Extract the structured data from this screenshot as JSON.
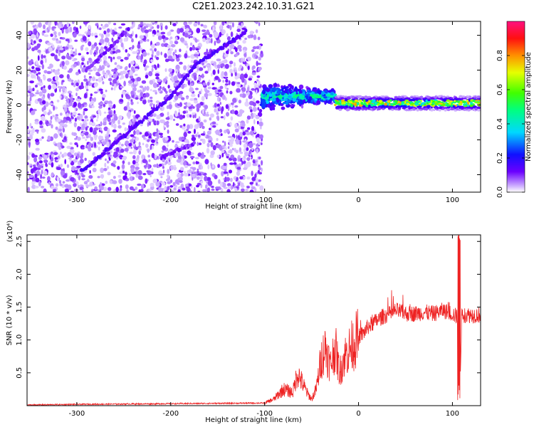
{
  "title": "C2E1.2023.242.10.31.G21",
  "chart_data": [
    {
      "type": "heatmap",
      "xlabel": "Height of straight line (km)",
      "ylabel": "Frequency (Hz)",
      "xlim": [
        -353,
        130
      ],
      "ylim": [
        -50,
        48
      ],
      "x_ticks": [
        -300,
        -200,
        -100,
        0,
        100
      ],
      "x_tick_labels": [
        "-300",
        "-200",
        "-100",
        "0",
        "100"
      ],
      "y_ticks": [
        -40,
        -20,
        0,
        20,
        40
      ],
      "y_tick_labels": [
        "-40",
        "-20",
        "0",
        "20",
        "40"
      ],
      "colorbar": {
        "label": "Normalized spectral amplitude",
        "range": [
          0,
          1
        ],
        "ticks": [
          0.0,
          0.2,
          0.4,
          0.6,
          0.8
        ],
        "tick_labels": [
          "0.0",
          "0.2",
          "0.4",
          "0.6",
          "0.8"
        ],
        "colormap": "rainbow (white-purple-blue-cyan-green-yellow-red-pink)"
      },
      "features": [
        {
          "name": "noise floor",
          "x_range": [
            -353,
            -103
          ],
          "y_range": [
            -50,
            48
          ],
          "amplitude": [
            0.0,
            0.1
          ]
        },
        {
          "name": "diagonal track",
          "points": [
            [
              -295,
              -38
            ],
            [
              -250,
              -18
            ],
            [
              -200,
              5
            ],
            [
              -175,
              22
            ],
            [
              -160,
              28
            ],
            [
              -130,
              38
            ],
            [
              -120,
              42
            ]
          ],
          "amplitude": 0.12
        },
        {
          "name": "upper diagonal track",
          "points": [
            [
              -290,
              20
            ],
            [
              -260,
              35
            ],
            [
              -245,
              44
            ]
          ],
          "amplitude": 0.08
        },
        {
          "name": "lower track",
          "points": [
            [
              -210,
              -30
            ],
            [
              -185,
              -24
            ],
            [
              -175,
              -22
            ]
          ],
          "amplitude": 0.08
        },
        {
          "name": "transition signal",
          "x_range": [
            -103,
            -25
          ],
          "y_center": 5,
          "amplitude": [
            0.2,
            0.5
          ]
        },
        {
          "name": "carrier",
          "x_range": [
            -25,
            130
          ],
          "y_center": 1,
          "amplitude": [
            0.5,
            1.0
          ]
        }
      ],
      "grid": false
    },
    {
      "type": "line",
      "xlabel": "Height of straight line (km)",
      "ylabel": "SNR (10 * v/v)",
      "y_multiplier_label": "(x10⁴)",
      "xlim": [
        -353,
        130
      ],
      "ylim": [
        0,
        2.6
      ],
      "x_ticks": [
        -300,
        -200,
        -100,
        0,
        100
      ],
      "x_tick_labels": [
        "-300",
        "-200",
        "-100",
        "0",
        "100"
      ],
      "y_ticks": [
        0.5,
        1.0,
        1.5,
        2.0,
        2.5
      ],
      "y_tick_labels": [
        "0.5",
        "1.0",
        "1.5",
        "2.0",
        "2.5"
      ],
      "color": "#ee2222",
      "series": [
        {
          "x": [
            -353,
            -300,
            -200,
            -100,
            -90,
            -80,
            -70,
            -65,
            -60,
            -55,
            -50,
            -45,
            -40,
            -35,
            -30,
            -25,
            -20,
            -15,
            -10,
            -5,
            0,
            5,
            10,
            15,
            20,
            25,
            30,
            35,
            40,
            50,
            60,
            70,
            80,
            90,
            100,
            105,
            108,
            110,
            120,
            130
          ],
          "y": [
            0.01,
            0.02,
            0.03,
            0.04,
            0.1,
            0.25,
            0.2,
            0.5,
            0.35,
            0.2,
            0.1,
            0.25,
            0.7,
            0.9,
            0.6,
            0.9,
            0.5,
            0.75,
            0.85,
            0.95,
            1.05,
            1.1,
            1.2,
            1.25,
            1.3,
            1.35,
            1.38,
            1.4,
            1.45,
            1.4,
            1.4,
            1.42,
            1.4,
            1.45,
            1.4,
            1.35,
            0.3,
            1.38,
            1.38,
            1.38
          ]
        }
      ],
      "grid": false
    }
  ]
}
